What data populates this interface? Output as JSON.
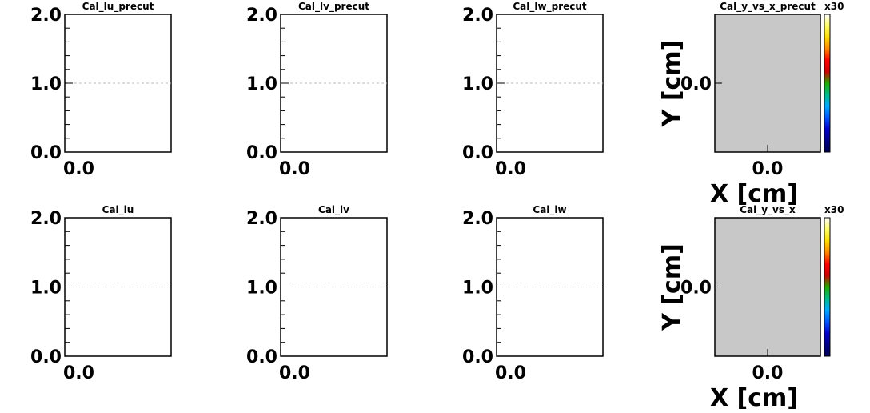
{
  "canvas": {
    "background": "#ffffff"
  },
  "chart_data": [
    {
      "type": "line",
      "title": "Cal_lu_precut",
      "xlabel": "",
      "ylabel": "",
      "x_ticks": [
        "0.0"
      ],
      "y_ticks": [
        "0.0",
        "1.0",
        "2.0"
      ],
      "ylim": [
        0,
        2
      ],
      "series": [],
      "grid": "dashed line at y = 1.0"
    },
    {
      "type": "line",
      "title": "Cal_lv_precut",
      "xlabel": "",
      "ylabel": "",
      "x_ticks": [
        "0.0"
      ],
      "y_ticks": [
        "0.0",
        "1.0",
        "2.0"
      ],
      "ylim": [
        0,
        2
      ],
      "series": [],
      "grid": "dashed line at y = 1.0"
    },
    {
      "type": "line",
      "title": "Cal_lw_precut",
      "xlabel": "",
      "ylabel": "",
      "x_ticks": [
        "0.0"
      ],
      "y_ticks": [
        "0.0",
        "1.0",
        "2.0"
      ],
      "ylim": [
        0,
        2
      ],
      "series": [],
      "grid": "dashed line at y = 1.0"
    },
    {
      "type": "heatmap",
      "title": "Cal_y_vs_x_precut",
      "xlabel": "X [cm]",
      "ylabel": "Y [cm]",
      "x_ticks": [
        "0.0"
      ],
      "y_ticks": [
        "0.0"
      ],
      "colorbar_exponent": "x30",
      "fill_color": "#c8c8c8",
      "values": []
    },
    {
      "type": "line",
      "title": "Cal_lu",
      "xlabel": "",
      "ylabel": "",
      "x_ticks": [
        "0.0"
      ],
      "y_ticks": [
        "0.0",
        "1.0",
        "2.0"
      ],
      "ylim": [
        0,
        2
      ],
      "series": [],
      "grid": "dashed line at y = 1.0"
    },
    {
      "type": "line",
      "title": "Cal_lv",
      "xlabel": "",
      "ylabel": "",
      "x_ticks": [
        "0.0"
      ],
      "y_ticks": [
        "0.0",
        "1.0",
        "2.0"
      ],
      "ylim": [
        0,
        2
      ],
      "series": [],
      "grid": "dashed line at y = 1.0"
    },
    {
      "type": "line",
      "title": "Cal_lw",
      "xlabel": "",
      "ylabel": "",
      "x_ticks": [
        "0.0"
      ],
      "y_ticks": [
        "0.0",
        "1.0",
        "2.0"
      ],
      "ylim": [
        0,
        2
      ],
      "series": [],
      "grid": "dashed line at y = 1.0"
    },
    {
      "type": "heatmap",
      "title": "Cal_y_vs_x",
      "xlabel": "X [cm]",
      "ylabel": "Y [cm]",
      "x_ticks": [
        "0.0"
      ],
      "y_ticks": [
        "0.0"
      ],
      "colorbar_exponent": "x30",
      "fill_color": "#c8c8c8",
      "values": []
    }
  ],
  "colorbar_colors": [
    "#ffffff",
    "#ffff66",
    "#ffdd00",
    "#ff8800",
    "#ff0000",
    "#cc0000",
    "#22aa00",
    "#00bb88",
    "#00aaff",
    "#0055ff",
    "#0000cc",
    "#000088",
    "#000055"
  ]
}
